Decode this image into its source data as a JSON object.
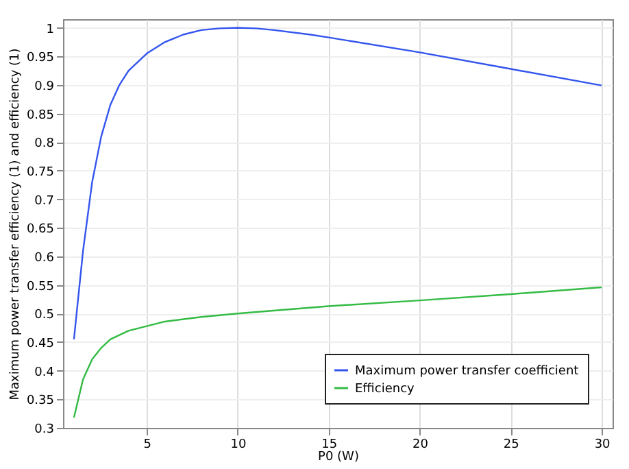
{
  "chart_data": {
    "type": "line",
    "xlabel": "P0 (W)",
    "ylabel": "Maximum power transfer efficiency (1) and efficiency (1)",
    "xlim": [
      0.4,
      30.6
    ],
    "ylim": [
      0.3,
      1.015
    ],
    "xticks": [
      5,
      10,
      15,
      20,
      25,
      30
    ],
    "yticks": [
      0.3,
      0.35,
      0.4,
      0.45,
      0.5,
      0.55,
      0.6,
      0.65,
      0.7,
      0.75,
      0.8,
      0.85,
      0.9,
      0.95,
      1
    ],
    "grid": true,
    "legend": "bottom right",
    "line_style": "solid",
    "marker": "none",
    "series": [
      {
        "name": "Maximum power transfer coefficient",
        "color": "#3355ee",
        "x": [
          1,
          1.5,
          2,
          2.5,
          3,
          3.5,
          4,
          5,
          6,
          7,
          8,
          9,
          10,
          11,
          12,
          14,
          15,
          20,
          25,
          30
        ],
        "values": [
          0.455,
          0.61,
          0.73,
          0.81,
          0.865,
          0.9,
          0.925,
          0.955,
          0.975,
          0.988,
          0.996,
          0.999,
          1.0,
          0.999,
          0.996,
          0.988,
          0.983,
          0.957,
          0.928,
          0.899
        ]
      },
      {
        "name": "Efficiency",
        "color": "#33bb44",
        "x": [
          1,
          1.5,
          2,
          2.5,
          3,
          4,
          5,
          6,
          8,
          10,
          15,
          20,
          25,
          30
        ],
        "values": [
          0.318,
          0.385,
          0.42,
          0.44,
          0.455,
          0.47,
          0.478,
          0.486,
          0.494,
          0.5,
          0.513,
          0.523,
          0.534,
          0.546
        ]
      }
    ]
  }
}
